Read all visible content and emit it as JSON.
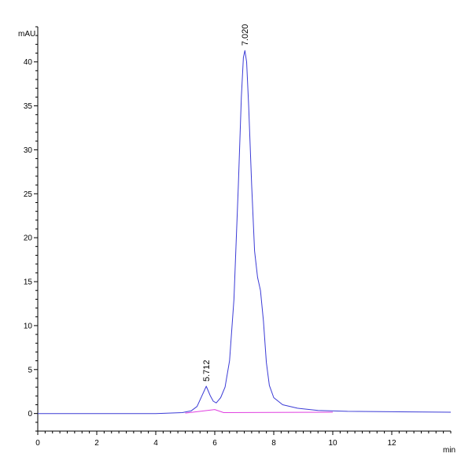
{
  "chart_data": {
    "type": "line",
    "title": "",
    "ylabel": "mAU",
    "xlabel": "min",
    "xlim": [
      0,
      14
    ],
    "ylim": [
      -2,
      44
    ],
    "x_ticks": [
      0,
      2,
      4,
      6,
      8,
      10,
      12
    ],
    "y_ticks": [
      0,
      5,
      10,
      15,
      20,
      25,
      30,
      35,
      40
    ],
    "grid": false,
    "series": [
      {
        "color": "#3b3bd6",
        "points": [
          [
            0,
            0.0
          ],
          [
            4.0,
            0.0
          ],
          [
            4.9,
            0.1
          ],
          [
            5.2,
            0.3
          ],
          [
            5.4,
            0.8
          ],
          [
            5.55,
            1.9
          ],
          [
            5.712,
            3.1
          ],
          [
            5.85,
            2.0
          ],
          [
            5.95,
            1.4
          ],
          [
            6.05,
            1.2
          ],
          [
            6.2,
            1.8
          ],
          [
            6.35,
            3.0
          ],
          [
            6.5,
            6.0
          ],
          [
            6.65,
            13.0
          ],
          [
            6.8,
            26.0
          ],
          [
            6.9,
            36.0
          ],
          [
            6.97,
            40.5
          ],
          [
            7.02,
            41.3
          ],
          [
            7.08,
            40.0
          ],
          [
            7.15,
            35.0
          ],
          [
            7.25,
            26.0
          ],
          [
            7.35,
            18.5
          ],
          [
            7.45,
            15.5
          ],
          [
            7.55,
            14.0
          ],
          [
            7.65,
            10.5
          ],
          [
            7.75,
            5.8
          ],
          [
            7.85,
            3.2
          ],
          [
            8.0,
            1.8
          ],
          [
            8.3,
            1.0
          ],
          [
            8.8,
            0.6
          ],
          [
            9.5,
            0.35
          ],
          [
            10.5,
            0.25
          ],
          [
            12.0,
            0.2
          ],
          [
            14.0,
            0.15
          ]
        ]
      },
      {
        "color": "#e040e0",
        "points": [
          [
            5.0,
            0.05
          ],
          [
            5.5,
            0.25
          ],
          [
            6.0,
            0.45
          ],
          [
            6.3,
            0.1
          ],
          [
            8.0,
            0.12
          ],
          [
            10.0,
            0.15
          ]
        ]
      }
    ],
    "peak_labels": [
      {
        "x": 5.712,
        "y": 3.1,
        "text": "5.712"
      },
      {
        "x": 7.02,
        "y": 41.3,
        "text": "7.020"
      }
    ],
    "axis_colors": {
      "axis": "#000000"
    }
  }
}
